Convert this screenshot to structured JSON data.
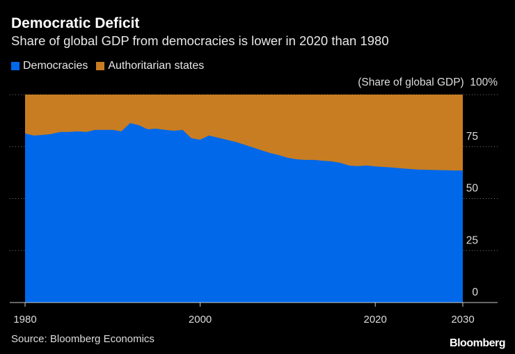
{
  "title": "Democratic Deficit",
  "subtitle": "Share of global GDP from democracies is lower in 2020 than 1980",
  "source": "Source: Bloomberg Economics",
  "logo": "Bloomberg",
  "colors": {
    "democracies": "#0068e9",
    "authoritarian": "#c87d22"
  },
  "chart_data": {
    "type": "area",
    "title": "Democratic Deficit",
    "ylabel": "(Share of global GDP)",
    "unit_label": "(Share of global GDP)",
    "ylim": [
      0,
      100
    ],
    "xlim": [
      1980,
      2030
    ],
    "yticks": [
      {
        "v": 0,
        "label": "0"
      },
      {
        "v": 25,
        "label": "25"
      },
      {
        "v": 50,
        "label": "50"
      },
      {
        "v": 75,
        "label": "75"
      },
      {
        "v": 100,
        "label": "100%"
      }
    ],
    "xticks": [
      {
        "v": 1980,
        "label": "1980"
      },
      {
        "v": 2000,
        "label": "2000"
      },
      {
        "v": 2020,
        "label": "2020"
      },
      {
        "v": 2030,
        "label": "2030"
      }
    ],
    "legend": [
      {
        "name": "Democracies",
        "color": "#0068e9"
      },
      {
        "name": "Authoritarian states",
        "color": "#c87d22"
      }
    ],
    "x": [
      1980,
      1981,
      1982,
      1983,
      1984,
      1985,
      1986,
      1987,
      1988,
      1989,
      1990,
      1991,
      1992,
      1993,
      1994,
      1995,
      1996,
      1997,
      1998,
      1999,
      2000,
      2001,
      2002,
      2003,
      2004,
      2005,
      2006,
      2007,
      2008,
      2009,
      2010,
      2011,
      2012,
      2013,
      2014,
      2015,
      2016,
      2017,
      2018,
      2019,
      2020,
      2021,
      2022,
      2023,
      2024,
      2025,
      2026,
      2027,
      2028,
      2029,
      2030
    ],
    "series": [
      {
        "name": "Democracies",
        "values": [
          81.3,
          80.3,
          80.6,
          81,
          82,
          82,
          82.3,
          82,
          83,
          83,
          83,
          82.3,
          86.3,
          85.3,
          83.3,
          83.6,
          83,
          82.6,
          83,
          79,
          78.3,
          80.3,
          79.3,
          78.3,
          77.3,
          76,
          74.6,
          73.2,
          71.9,
          70.9,
          69.6,
          68.9,
          68.6,
          68.6,
          68.2,
          67.9,
          67.2,
          65.9,
          65.6,
          65.9,
          65.5,
          65.2,
          64.9,
          64.5,
          64.2,
          63.9,
          63.8,
          63.7,
          63.6,
          63.5,
          63.5
        ]
      },
      {
        "name": "Authoritarian states",
        "values": "remainder to 100"
      }
    ]
  }
}
